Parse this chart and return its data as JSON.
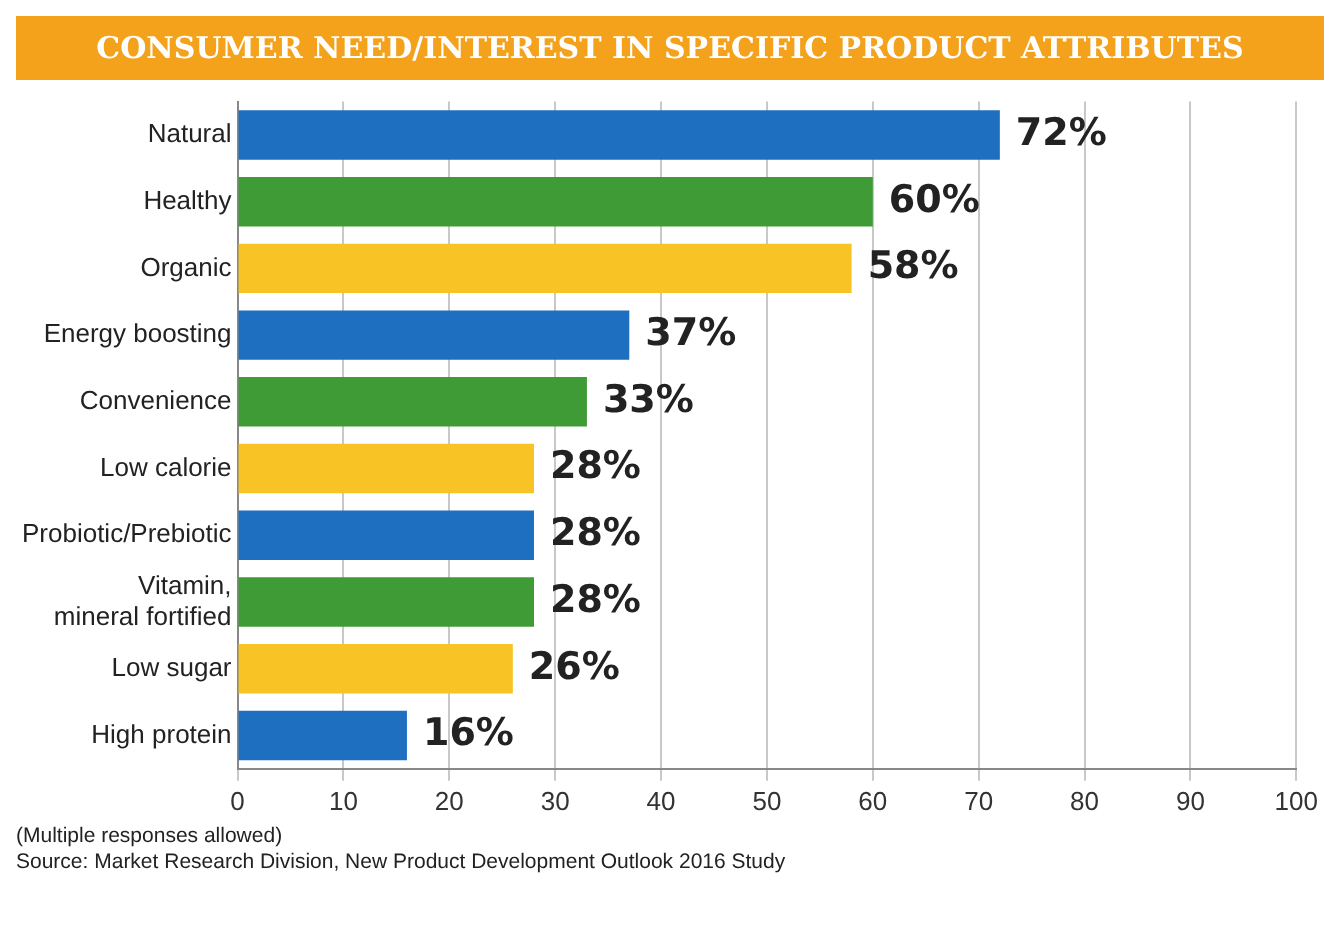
{
  "chart_data": {
    "type": "bar",
    "orientation": "horizontal",
    "title": "CONSUMER NEED/INTEREST IN SPECIFIC PRODUCT ATTRIBUTES",
    "categories": [
      "Natural",
      "Healthy",
      "Organic",
      "Energy boosting",
      "Convenience",
      "Low calorie",
      "Probiotic/Prebiotic",
      "Vitamin, mineral fortified",
      "Low sugar",
      "High protein"
    ],
    "values": [
      72,
      60,
      58,
      37,
      33,
      28,
      28,
      28,
      26,
      16
    ],
    "value_labels": [
      "72%",
      "60%",
      "58%",
      "37%",
      "33%",
      "28%",
      "28%",
      "28%",
      "26%",
      "16%"
    ],
    "colors": [
      "#1f6fc0",
      "#3f9b35",
      "#f7c325",
      "#1f6fc0",
      "#3f9b35",
      "#f7c325",
      "#1f6fc0",
      "#3f9b35",
      "#f7c325",
      "#1f6fc0"
    ],
    "xlim": [
      0,
      100
    ],
    "xticks": [
      0,
      10,
      20,
      30,
      40,
      50,
      60,
      70,
      80,
      90,
      100
    ],
    "grid": "x",
    "legend": false,
    "annotations": [
      "(Multiple responses allowed)",
      "Source: Market Research Division, New Product Development Outlook 2016 Study"
    ]
  }
}
